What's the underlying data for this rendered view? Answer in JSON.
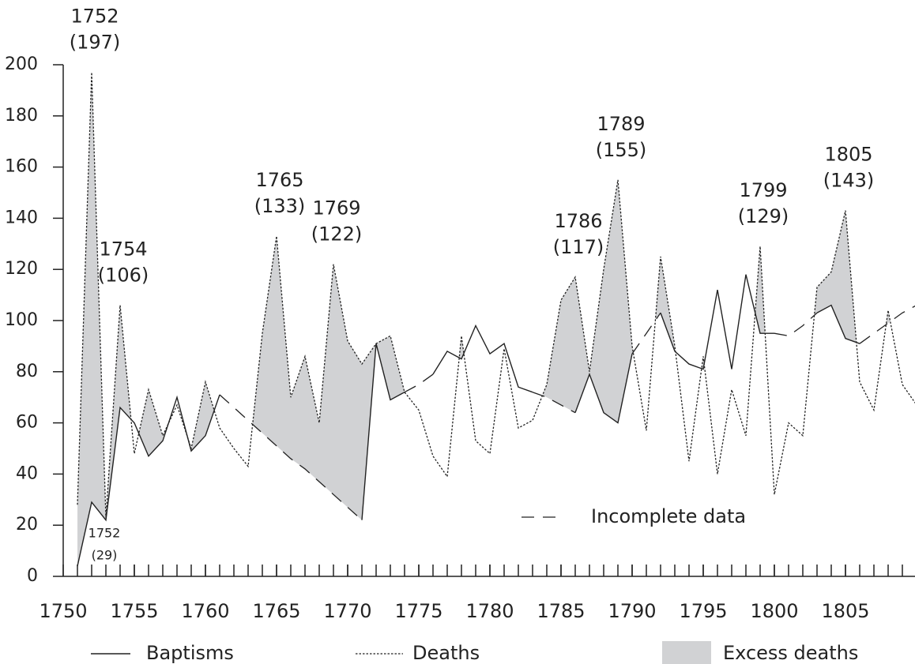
{
  "chart_data": {
    "type": "line",
    "x": [
      1751,
      1752,
      1753,
      1754,
      1755,
      1756,
      1757,
      1758,
      1759,
      1760,
      1761,
      1762,
      1763,
      1764,
      1765,
      1766,
      1767,
      1768,
      1769,
      1770,
      1771,
      1772,
      1773,
      1774,
      1775,
      1776,
      1777,
      1778,
      1779,
      1780,
      1781,
      1782,
      1783,
      1784,
      1785,
      1786,
      1787,
      1788,
      1789,
      1790,
      1791,
      1792,
      1793,
      1794,
      1795,
      1796,
      1797,
      1798,
      1799,
      1800,
      1801,
      1802,
      1803,
      1804,
      1805,
      1806,
      1807,
      1808,
      1809,
      1810
    ],
    "series": [
      {
        "name": "Baptisms",
        "style": "solid",
        "color": "#222222",
        "values": [
          4,
          29,
          22,
          66,
          60,
          47,
          53,
          70,
          49,
          55,
          71,
          null,
          null,
          null,
          null,
          null,
          null,
          null,
          null,
          null,
          22,
          91,
          69,
          72,
          null,
          79,
          88,
          85,
          98,
          87,
          91,
          74,
          72,
          null,
          null,
          64,
          79,
          64,
          60,
          87,
          null,
          103,
          88,
          83,
          81,
          112,
          81,
          118,
          95,
          95,
          null,
          null,
          103,
          106,
          93,
          91,
          null,
          null,
          null,
          null
        ]
      },
      {
        "name": "Deaths",
        "style": "dotted",
        "color": "#222222",
        "values": [
          28,
          197,
          23,
          106,
          48,
          73,
          55,
          67,
          50,
          76,
          58,
          50,
          43,
          95,
          133,
          70,
          86,
          60,
          122,
          92,
          83,
          91,
          94,
          72,
          65,
          47,
          39,
          94,
          53,
          48,
          89,
          58,
          61,
          75,
          108,
          117,
          80,
          120,
          155,
          90,
          57,
          125,
          90,
          45,
          86,
          40,
          73,
          55,
          129,
          32,
          60,
          55,
          113,
          119,
          143,
          76,
          65,
          104,
          75,
          67
        ]
      },
      {
        "name": "Incomplete data",
        "style": "dashed",
        "color": "#222222",
        "values": [
          null,
          null,
          null,
          null,
          null,
          null,
          null,
          null,
          null,
          null,
          71,
          66,
          61,
          56,
          51,
          46,
          42,
          37,
          32,
          27,
          22,
          null,
          null,
          72,
          75,
          79,
          null,
          null,
          null,
          null,
          null,
          null,
          72,
          70,
          67,
          64,
          null,
          null,
          null,
          87,
          95,
          103,
          null,
          null,
          null,
          null,
          null,
          null,
          null,
          95,
          94,
          98,
          103,
          null,
          null,
          91,
          95,
          99,
          103,
          106
        ]
      },
      {
        "name": "Excess deaths",
        "style": "area",
        "color": "#d1d2d4"
      }
    ],
    "annotations": [
      {
        "x": 1752,
        "value": 197,
        "value_label": "(197)"
      },
      {
        "x": 1752,
        "value": 29,
        "value_label": "(29)"
      },
      {
        "x": 1754,
        "value": 106,
        "value_label": "(106)"
      },
      {
        "x": 1765,
        "value": 133,
        "value_label": "(133)"
      },
      {
        "x": 1769,
        "value": 122,
        "value_label": "(122)"
      },
      {
        "x": 1786,
        "value": 117,
        "value_label": "(117)"
      },
      {
        "x": 1789,
        "value": 155,
        "value_label": "(155)"
      },
      {
        "x": 1799,
        "value": 129,
        "value_label": "(129)"
      },
      {
        "x": 1805,
        "value": 143,
        "value_label": "(143)"
      }
    ],
    "xlim": [
      1750,
      1810
    ],
    "xticks": [
      1750,
      1755,
      1760,
      1765,
      1770,
      1775,
      1780,
      1785,
      1790,
      1795,
      1800,
      1805
    ],
    "ylim": [
      0,
      200
    ],
    "yticks": [
      0,
      20,
      40,
      60,
      80,
      100,
      120,
      140,
      160,
      180,
      200
    ]
  }
}
